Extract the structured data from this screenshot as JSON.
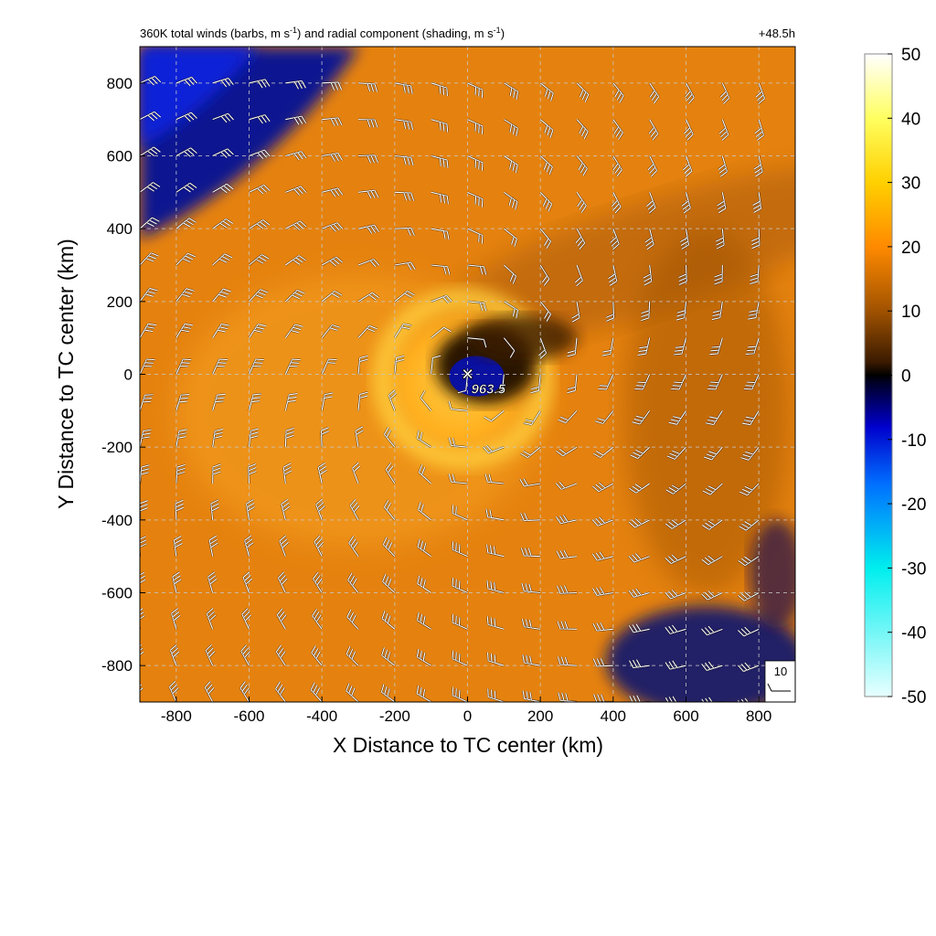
{
  "chart_data": {
    "type": "heatmap",
    "title_prefix": "360K total winds (barbs, m s",
    "title_mid": ") and radial component (shading, m s",
    "title_end": ")",
    "title_sup": "-1",
    "time_label": "+48.5h",
    "xlabel": "X Distance to TC center (km)",
    "ylabel": "Y Distance to TC center (km)",
    "xlim": [
      -900,
      900
    ],
    "ylim": [
      -900,
      900
    ],
    "x_ticks": [
      -800,
      -600,
      -400,
      -200,
      0,
      200,
      400,
      600,
      800
    ],
    "y_ticks": [
      -800,
      -600,
      -400,
      -200,
      0,
      200,
      400,
      600,
      800
    ],
    "grid": true,
    "center_marker": {
      "x": 0,
      "y": 0,
      "symbol": "×",
      "label": "963.5"
    },
    "colorbar": {
      "range": [
        -50,
        50
      ],
      "ticks": [
        50,
        40,
        30,
        20,
        10,
        0,
        -10,
        -20,
        -30,
        -40,
        -50
      ],
      "colors": [
        "#e8ffff",
        "#00eeee",
        "#0070ff",
        "#0000cc",
        "#000022",
        "#000000",
        "#3a1a00",
        "#a05200",
        "#ff8a00",
        "#ffd000",
        "#ffff60",
        "#ffffff"
      ],
      "color_positions": [
        0,
        0.2,
        0.33,
        0.42,
        0.49,
        0.5,
        0.52,
        0.6,
        0.7,
        0.8,
        0.9,
        1.0
      ]
    },
    "reference_barb": {
      "label": "10"
    },
    "barb_spacing_km": 100,
    "shading": {
      "description": "radial wind component shading",
      "peak_inflow_band_radius_km": 250
    }
  }
}
